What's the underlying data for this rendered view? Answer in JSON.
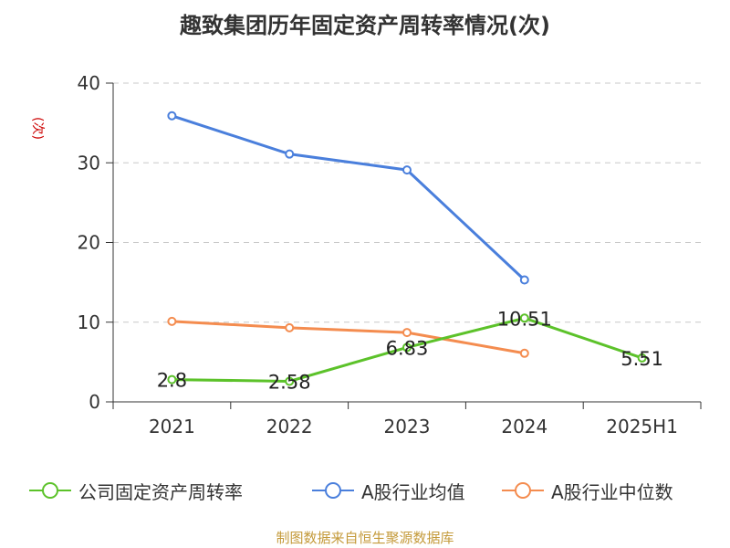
{
  "chart_data": {
    "type": "line",
    "title": "趣致集团历年固定资产周转率情况(次)",
    "unit_label": "(次)",
    "categories": [
      "2021",
      "2022",
      "2023",
      "2024",
      "2025H1"
    ],
    "ylim": [
      0,
      40
    ],
    "yticks": [
      0,
      10,
      20,
      30,
      40
    ],
    "grid": true,
    "legend_position": "bottom",
    "series": [
      {
        "name": "公司固定资产周转率",
        "color": "#5cc22a",
        "values": [
          2.8,
          2.58,
          6.83,
          10.51,
          5.51
        ],
        "labels": [
          "2.8",
          "2.58",
          "6.83",
          "10.51",
          "5.51"
        ]
      },
      {
        "name": "A股行业均值",
        "color": "#4a7fdc",
        "values": [
          35.9,
          31.1,
          29.1,
          15.3,
          null
        ]
      },
      {
        "name": "A股行业中位数",
        "color": "#f48c4f",
        "values": [
          10.1,
          9.3,
          8.7,
          6.1,
          null
        ]
      }
    ]
  },
  "footer": {
    "note": "制图数据来自恒生聚源数据库"
  }
}
